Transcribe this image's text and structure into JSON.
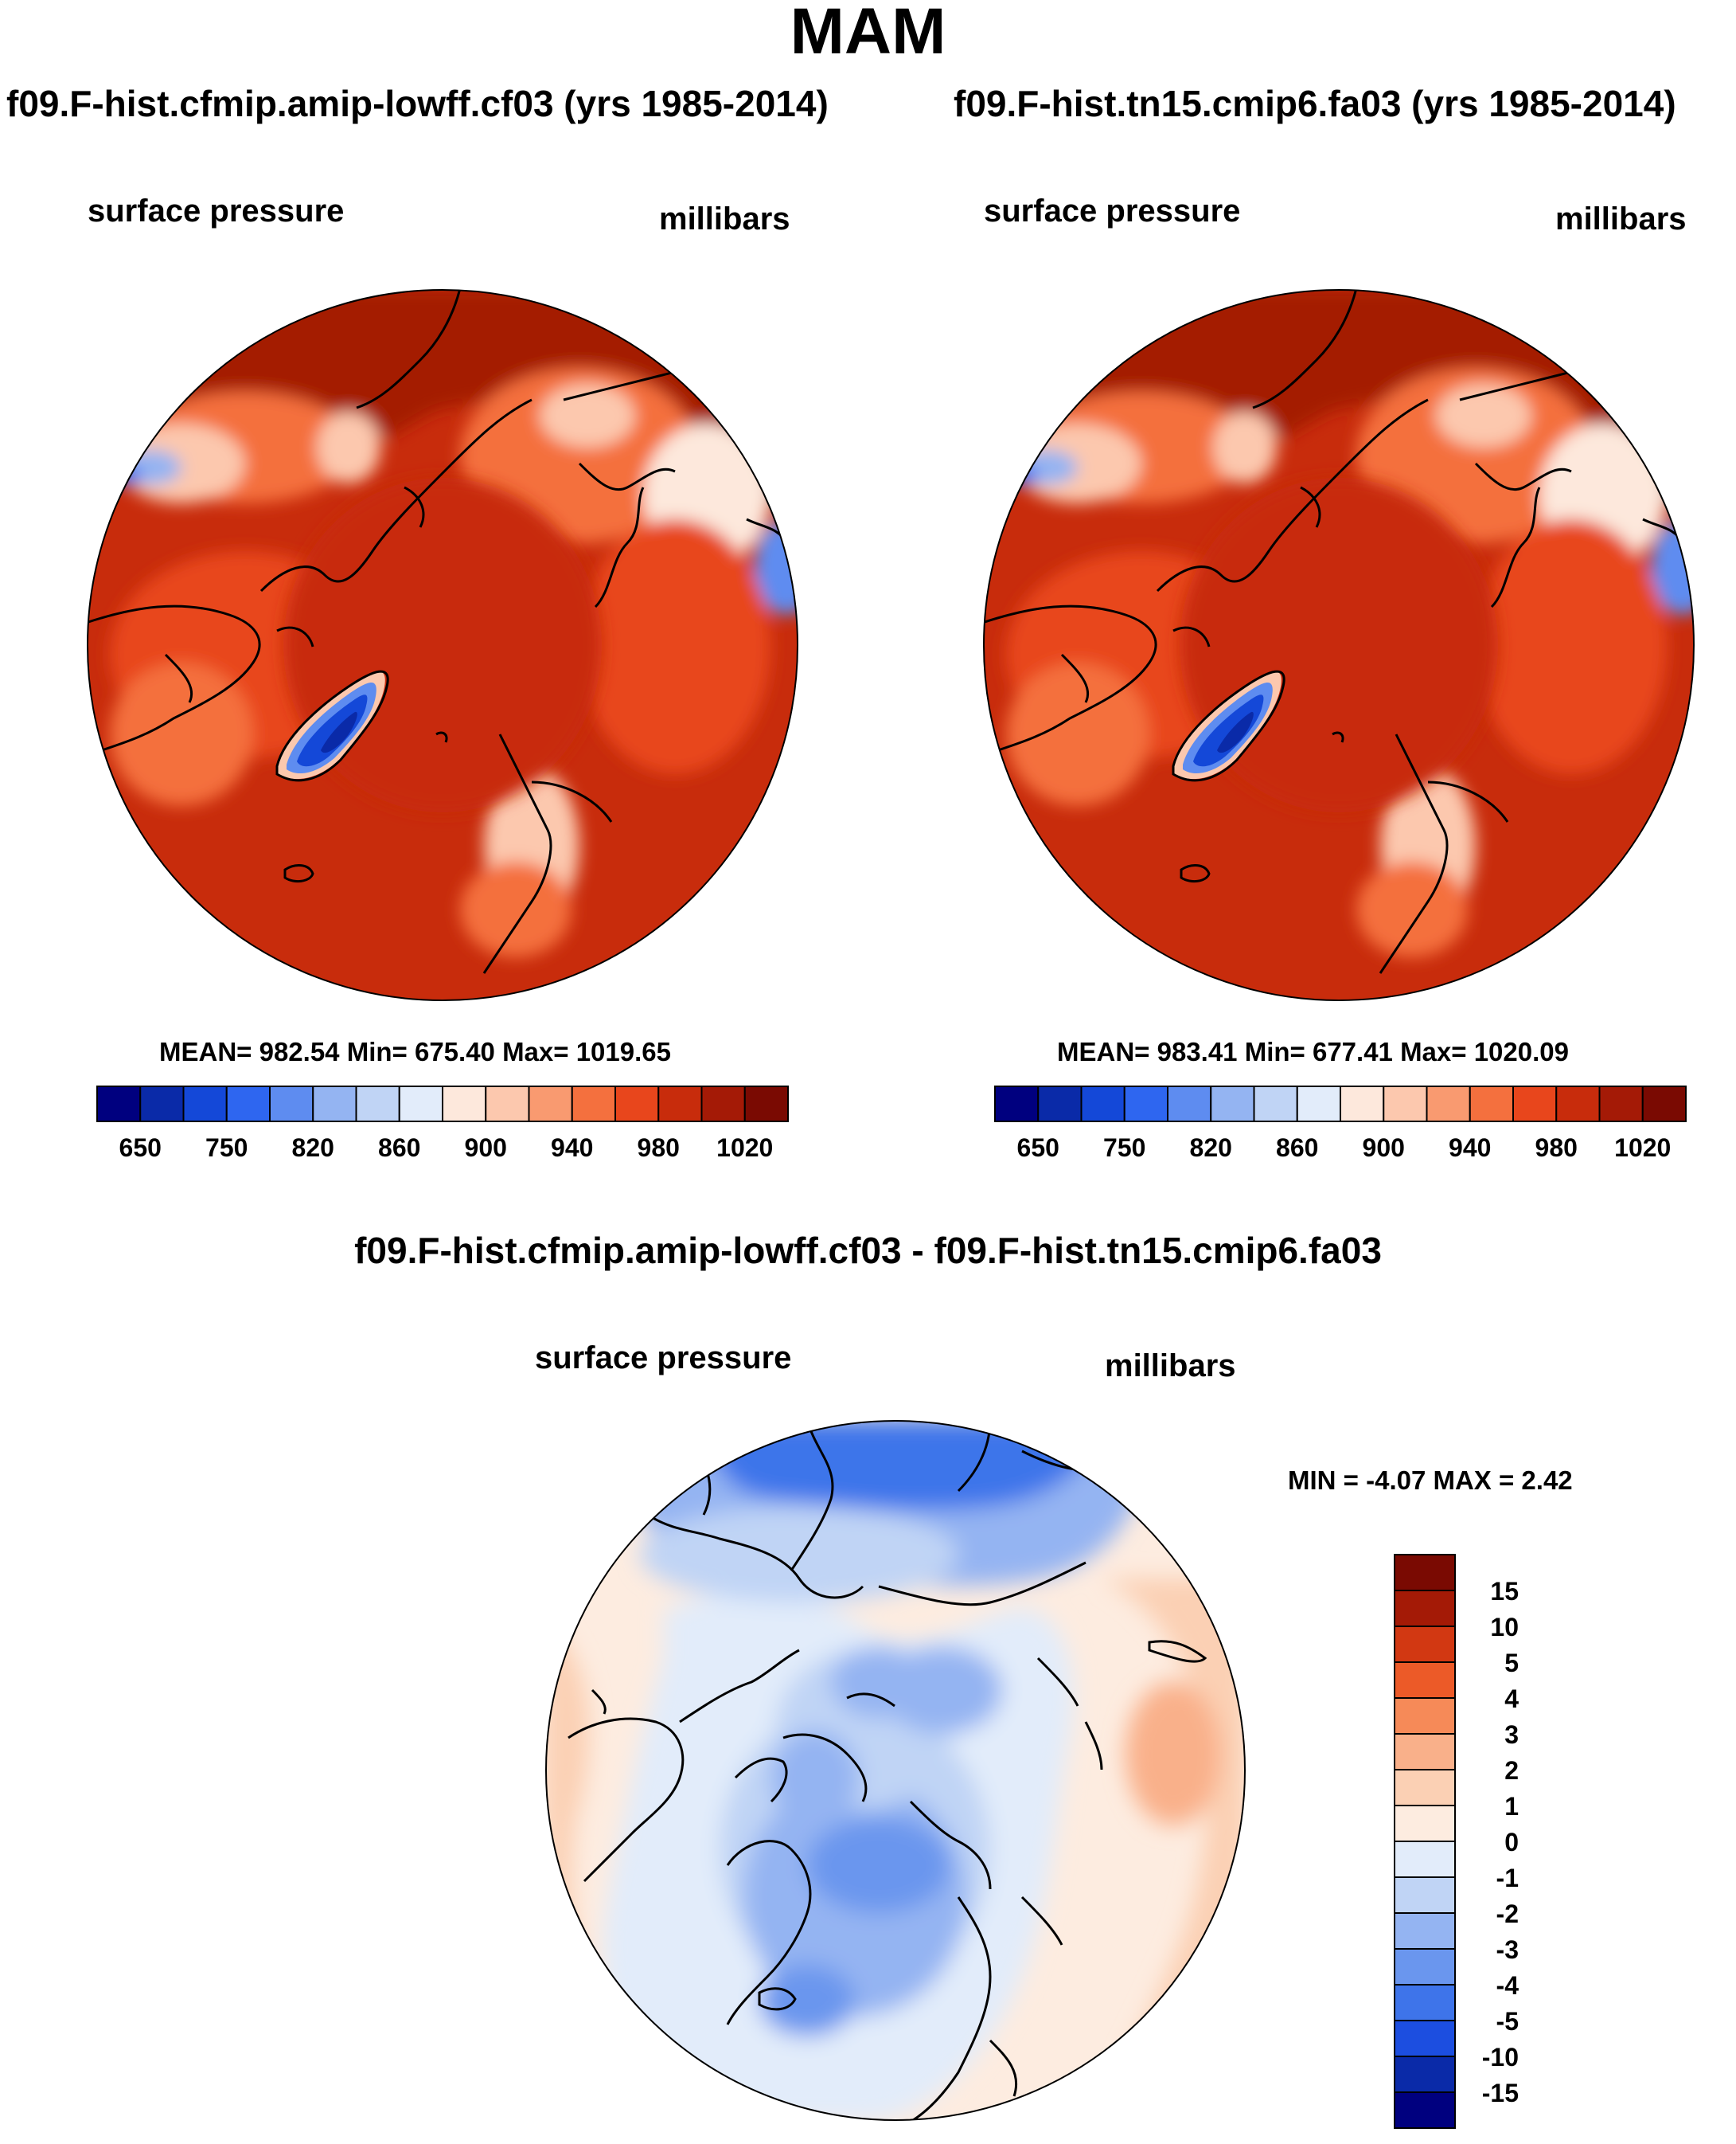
{
  "header": {
    "title": "MAM"
  },
  "panels": [
    {
      "title": "f09.F-hist.cfmip.amip-lowff.cf03 (yrs 1985-2014)",
      "variable": "surface pressure",
      "units": "millibars",
      "stats": "MEAN= 982.54  Min= 675.40  Max= 1019.65",
      "colorbar_labels": [
        "650",
        "750",
        "820",
        "860",
        "900",
        "940",
        "980",
        "1020"
      ]
    },
    {
      "title": "f09.F-hist.tn15.cmip6.fa03 (yrs 1985-2014)",
      "variable": "surface pressure",
      "units": "millibars",
      "stats": "MEAN= 983.41  Min= 677.41  Max= 1020.09",
      "colorbar_labels": [
        "650",
        "750",
        "820",
        "860",
        "900",
        "940",
        "980",
        "1020"
      ]
    }
  ],
  "difference": {
    "title": "f09.F-hist.cfmip.amip-lowff.cf03 - f09.F-hist.tn15.cmip6.fa03",
    "variable": "surface pressure",
    "units": "millibars",
    "stats": "MIN =  -4.07 MAX =   2.42",
    "colorbar_labels": [
      "15",
      "10",
      "5",
      "4",
      "3",
      "2",
      "1",
      "0",
      "-1",
      "-2",
      "-3",
      "-4",
      "-5",
      "-10",
      "-15"
    ]
  },
  "colors": {
    "abs_scale": [
      "#00007f",
      "#0a2aa8",
      "#1448d8",
      "#2e66f0",
      "#5e8cf0",
      "#94b4f2",
      "#c0d4f5",
      "#e2ecfa",
      "#fde8dc",
      "#fcc8ae",
      "#f99a70",
      "#f4703e",
      "#e8461c",
      "#c82c0c",
      "#a41a06",
      "#7a0a02"
    ],
    "diff_scale": [
      "#7a0a02",
      "#a41a06",
      "#d23812",
      "#ec5a28",
      "#f68a58",
      "#f9b08a",
      "#fbd0b4",
      "#fdece0",
      "#e2ecfa",
      "#c0d4f5",
      "#94b4f2",
      "#6a96ee",
      "#3e74ea",
      "#1c4ee0",
      "#0a2aa8",
      "#00007f"
    ]
  },
  "chart_data": [
    {
      "type": "heatmap",
      "title": "f09.F-hist.cfmip.amip-lowff.cf03 (yrs 1985-2014)",
      "variable": "surface pressure",
      "units": "millibars",
      "projection": "north polar stereographic",
      "colorbar_ticks": [
        650,
        750,
        820,
        860,
        900,
        940,
        980,
        1020
      ],
      "mean": 982.54,
      "min": 675.4,
      "max": 1019.65
    },
    {
      "type": "heatmap",
      "title": "f09.F-hist.tn15.cmip6.fa03 (yrs 1985-2014)",
      "variable": "surface pressure",
      "units": "millibars",
      "projection": "north polar stereographic",
      "colorbar_ticks": [
        650,
        750,
        820,
        860,
        900,
        940,
        980,
        1020
      ],
      "mean": 983.41,
      "min": 677.41,
      "max": 1020.09
    },
    {
      "type": "heatmap",
      "title": "f09.F-hist.cfmip.amip-lowff.cf03 - f09.F-hist.tn15.cmip6.fa03",
      "variable": "surface pressure",
      "units": "millibars",
      "projection": "north polar stereographic",
      "colorbar_ticks": [
        15,
        10,
        5,
        4,
        3,
        2,
        1,
        0,
        -1,
        -2,
        -3,
        -4,
        -5,
        -10,
        -15
      ],
      "min": -4.07,
      "max": 2.42
    }
  ]
}
